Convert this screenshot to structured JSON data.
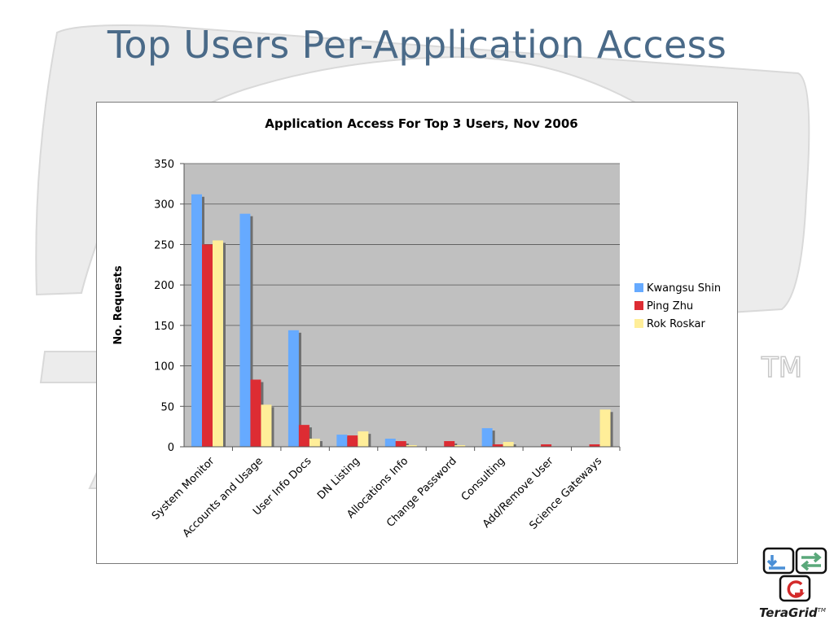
{
  "slide": {
    "title": "Top Users Per-Application Access"
  },
  "watermark": {
    "tm": "TM"
  },
  "logo": {
    "name": "TeraGrid",
    "tm": "TM"
  },
  "colors": {
    "title": "#4a6a88",
    "plot_bg": "#c0c0c0",
    "gridline": "#555555",
    "shadow": "#6e6e6e"
  },
  "chart_data": {
    "type": "bar",
    "title": "Application Access For Top 3 Users, Nov 2006",
    "xlabel": "",
    "ylabel": "No. Requests",
    "ylim": [
      0,
      350
    ],
    "yticks": [
      0,
      50,
      100,
      150,
      200,
      250,
      300,
      350
    ],
    "grid": true,
    "legend_position": "right",
    "categories": [
      "System Monitor",
      "Accounts and Usage",
      "User Info Docs",
      "DN Listing",
      "Allocations Info",
      "Change Password",
      "Consulting",
      "Add/Remove User",
      "Science Gateways"
    ],
    "series": [
      {
        "name": "Kwangsu Shin",
        "color": "#66aaff",
        "values": [
          312,
          288,
          144,
          15,
          10,
          0,
          23,
          0,
          0
        ]
      },
      {
        "name": "Ping Zhu",
        "color": "#dd2c33",
        "values": [
          250,
          83,
          27,
          14,
          7,
          7,
          3,
          3,
          3
        ]
      },
      {
        "name": "Rok Roskar",
        "color": "#ffee99",
        "values": [
          255,
          52,
          10,
          19,
          2,
          2,
          6,
          0,
          46
        ]
      }
    ]
  }
}
